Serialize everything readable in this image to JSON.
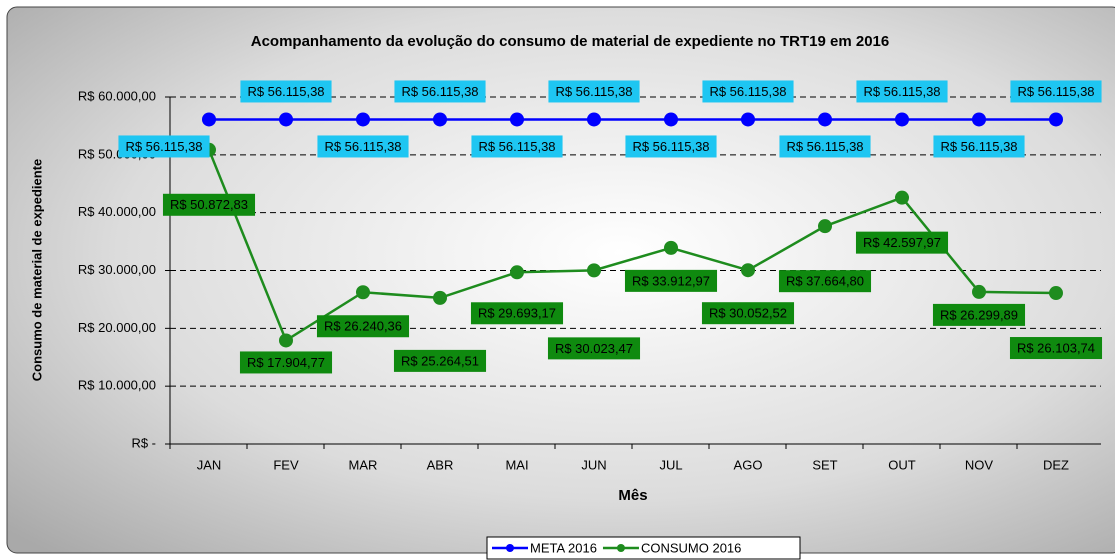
{
  "chart_data": {
    "type": "line",
    "title": "Acompanhamento da evolução do consumo de material de expediente  no TRT19 em 2016",
    "x_label": "Mês",
    "y_label": "Consumo de material de expediente",
    "categories": [
      "JAN",
      "FEV",
      "MAR",
      "ABR",
      "MAI",
      "JUN",
      "JUL",
      "AGO",
      "SET",
      "OUT",
      "NOV",
      "DEZ"
    ],
    "series": [
      {
        "name": "META 2016",
        "color": "#0000ff",
        "values": [
          56115.38,
          56115.38,
          56115.38,
          56115.38,
          56115.38,
          56115.38,
          56115.38,
          56115.38,
          56115.38,
          56115.38,
          56115.38,
          56115.38
        ],
        "value_labels": [
          "R$ 56.115,38",
          "R$ 56.115,38",
          "R$ 56.115,38",
          "R$ 56.115,38",
          "R$ 56.115,38",
          "R$ 56.115,38",
          "R$ 56.115,38",
          "R$ 56.115,38",
          "R$ 56.115,38",
          "R$ 56.115,38",
          "R$ 56.115,38",
          "R$ 56.115,38"
        ]
      },
      {
        "name": "CONSUMO 2016",
        "color": "#1e8c1e",
        "values": [
          50872.83,
          17904.77,
          26240.36,
          25264.51,
          29693.17,
          30023.47,
          33912.97,
          30052.52,
          37664.8,
          42597.97,
          26299.89,
          26103.74
        ],
        "value_labels": [
          "R$ 50.872,83",
          "R$ 17.904,77",
          "R$ 26.240,36",
          "R$ 25.264,51",
          "R$ 29.693,17",
          "R$ 30.023,47",
          "R$ 33.912,97",
          "R$ 30.052,52",
          "R$ 37.664,80",
          "R$ 42.597,97",
          "R$ 26.299,89",
          "R$ 26.103,74"
        ]
      }
    ],
    "ylim": [
      0,
      60000
    ],
    "yticks": [
      {
        "value": 0,
        "label": "R$ -"
      },
      {
        "value": 10000,
        "label": "R$ 10.000,00"
      },
      {
        "value": 20000,
        "label": "R$ 20.000,00"
      },
      {
        "value": 30000,
        "label": "R$ 30.000,00"
      },
      {
        "value": 40000,
        "label": "R$ 40.000,00"
      },
      {
        "value": 50000,
        "label": "R$ 50.000,00"
      },
      {
        "value": 60000,
        "label": "R$ 60.000,00"
      }
    ],
    "grid": true,
    "legend": "bottom"
  }
}
